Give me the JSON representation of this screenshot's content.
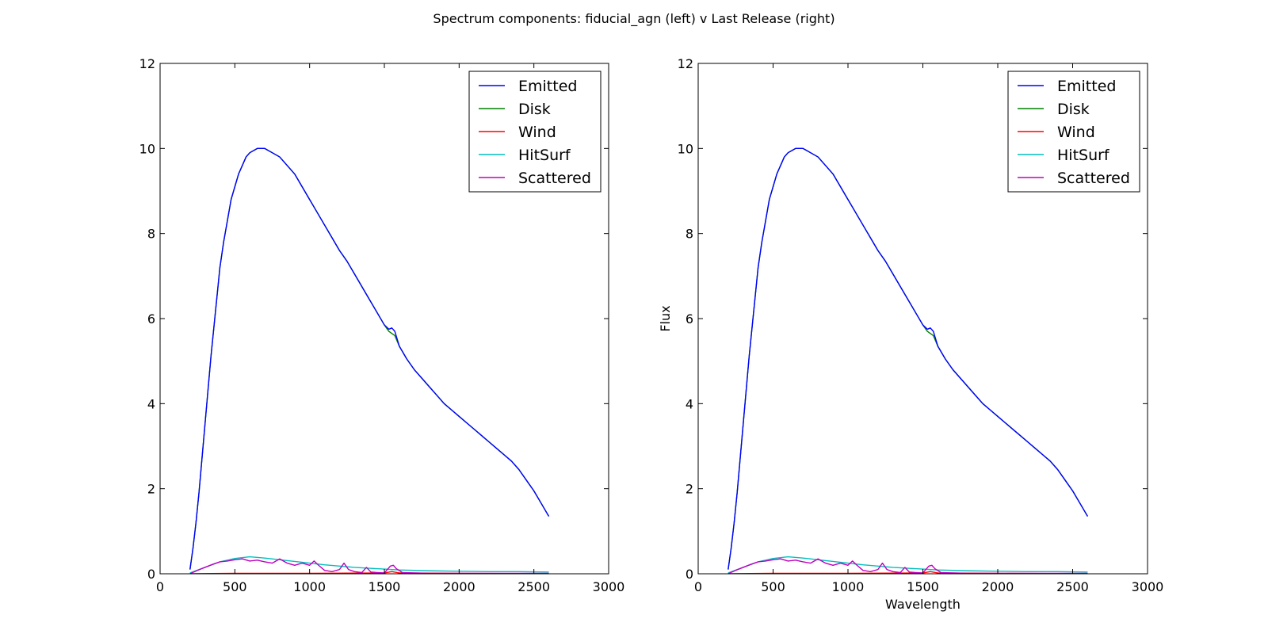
{
  "figure": {
    "title": "Spectrum components: fiducial_agn (left) v Last Release (right)"
  },
  "chart_data": [
    {
      "type": "line",
      "title": "",
      "xlabel": "",
      "ylabel": "",
      "xlim": [
        0,
        3000
      ],
      "ylim": [
        0,
        12
      ],
      "xticks": [
        0,
        500,
        1000,
        1500,
        2000,
        2500,
        3000
      ],
      "yticks": [
        0,
        2,
        4,
        6,
        8,
        10,
        12
      ],
      "grid": false,
      "legend_position": "top-right",
      "series": [
        {
          "name": "Emitted",
          "color": "#0000ff",
          "x": [
            200,
            220,
            240,
            260,
            280,
            300,
            320,
            340,
            360,
            380,
            400,
            425,
            450,
            475,
            500,
            525,
            550,
            575,
            600,
            650,
            700,
            750,
            800,
            850,
            900,
            950,
            1000,
            1050,
            1100,
            1150,
            1200,
            1250,
            1300,
            1350,
            1400,
            1450,
            1500,
            1530,
            1550,
            1570,
            1600,
            1650,
            1700,
            1750,
            1800,
            1850,
            1900,
            1950,
            2000,
            2050,
            2100,
            2150,
            2200,
            2250,
            2300,
            2350,
            2400,
            2450,
            2500,
            2550,
            2600
          ],
          "y": [
            0.1,
            0.6,
            1.2,
            1.9,
            2.7,
            3.5,
            4.3,
            5.1,
            5.8,
            6.5,
            7.2,
            7.8,
            8.3,
            8.8,
            9.1,
            9.4,
            9.6,
            9.8,
            9.9,
            10.0,
            10.0,
            9.9,
            9.8,
            9.6,
            9.4,
            9.1,
            8.8,
            8.5,
            8.2,
            7.9,
            7.6,
            7.35,
            7.05,
            6.75,
            6.45,
            6.15,
            5.85,
            5.75,
            5.78,
            5.7,
            5.35,
            5.05,
            4.8,
            4.6,
            4.4,
            4.2,
            4.0,
            3.85,
            3.7,
            3.55,
            3.4,
            3.25,
            3.1,
            2.95,
            2.8,
            2.65,
            2.45,
            2.2,
            1.95,
            1.65,
            1.35
          ]
        },
        {
          "name": "Disk",
          "color": "#008000",
          "x": [
            200,
            220,
            240,
            260,
            280,
            300,
            320,
            340,
            360,
            380,
            400,
            425,
            450,
            475,
            500,
            525,
            550,
            575,
            600,
            650,
            700,
            750,
            800,
            850,
            900,
            950,
            1000,
            1050,
            1100,
            1150,
            1200,
            1250,
            1300,
            1350,
            1400,
            1450,
            1500,
            1530,
            1550,
            1570,
            1600,
            1650,
            1700,
            1750,
            1800,
            1850,
            1900,
            1950,
            2000,
            2050,
            2100,
            2150,
            2200,
            2250,
            2300,
            2350,
            2400,
            2450,
            2500,
            2550,
            2600
          ],
          "y": [
            0.1,
            0.6,
            1.2,
            1.9,
            2.7,
            3.5,
            4.3,
            5.1,
            5.8,
            6.5,
            7.2,
            7.8,
            8.3,
            8.8,
            9.1,
            9.4,
            9.6,
            9.8,
            9.9,
            10.0,
            10.0,
            9.9,
            9.8,
            9.6,
            9.4,
            9.1,
            8.8,
            8.5,
            8.2,
            7.9,
            7.6,
            7.35,
            7.05,
            6.75,
            6.45,
            6.15,
            5.85,
            5.7,
            5.65,
            5.6,
            5.35,
            5.05,
            4.8,
            4.6,
            4.4,
            4.2,
            4.0,
            3.85,
            3.7,
            3.55,
            3.4,
            3.25,
            3.1,
            2.95,
            2.8,
            2.65,
            2.45,
            2.2,
            1.95,
            1.65,
            1.35
          ]
        },
        {
          "name": "Wind",
          "color": "#ff0000",
          "x": [
            200,
            500,
            1000,
            1500,
            1550,
            1600,
            2000,
            2600
          ],
          "y": [
            0.0,
            0.01,
            0.01,
            0.02,
            0.05,
            0.02,
            0.01,
            0.0
          ]
        },
        {
          "name": "HitSurf",
          "color": "#00bfbf",
          "x": [
            200,
            300,
            400,
            500,
            600,
            700,
            800,
            900,
            1000,
            1100,
            1200,
            1300,
            1400,
            1500,
            1600,
            1800,
            2000,
            2200,
            2400,
            2600
          ],
          "y": [
            0.02,
            0.15,
            0.28,
            0.36,
            0.4,
            0.37,
            0.33,
            0.29,
            0.25,
            0.21,
            0.18,
            0.15,
            0.13,
            0.11,
            0.09,
            0.07,
            0.06,
            0.05,
            0.05,
            0.04
          ]
        },
        {
          "name": "Scattered",
          "color": "#bf00bf",
          "x": [
            200,
            250,
            300,
            350,
            400,
            450,
            500,
            550,
            600,
            650,
            700,
            750,
            800,
            850,
            900,
            950,
            1000,
            1030,
            1060,
            1100,
            1150,
            1200,
            1230,
            1260,
            1300,
            1350,
            1380,
            1410,
            1450,
            1500,
            1540,
            1560,
            1580,
            1620,
            1700,
            1800,
            2000,
            2200,
            2400,
            2600
          ],
          "y": [
            0.0,
            0.08,
            0.15,
            0.22,
            0.28,
            0.3,
            0.33,
            0.35,
            0.3,
            0.32,
            0.28,
            0.25,
            0.35,
            0.25,
            0.2,
            0.25,
            0.2,
            0.3,
            0.2,
            0.08,
            0.05,
            0.1,
            0.25,
            0.1,
            0.05,
            0.03,
            0.15,
            0.04,
            0.03,
            0.02,
            0.18,
            0.2,
            0.12,
            0.03,
            0.02,
            0.01,
            0.01,
            0.01,
            0.01,
            0.01
          ]
        }
      ]
    },
    {
      "type": "line",
      "title": "",
      "xlabel": "Wavelength",
      "ylabel": "Flux",
      "xlim": [
        0,
        3000
      ],
      "ylim": [
        0,
        12
      ],
      "xticks": [
        0,
        500,
        1000,
        1500,
        2000,
        2500,
        3000
      ],
      "yticks": [
        0,
        2,
        4,
        6,
        8,
        10,
        12
      ],
      "grid": false,
      "legend_position": "top-right",
      "series": [
        {
          "name": "Emitted",
          "color": "#0000ff",
          "x": [
            200,
            220,
            240,
            260,
            280,
            300,
            320,
            340,
            360,
            380,
            400,
            425,
            450,
            475,
            500,
            525,
            550,
            575,
            600,
            650,
            700,
            750,
            800,
            850,
            900,
            950,
            1000,
            1050,
            1100,
            1150,
            1200,
            1250,
            1300,
            1350,
            1400,
            1450,
            1500,
            1530,
            1550,
            1570,
            1600,
            1650,
            1700,
            1750,
            1800,
            1850,
            1900,
            1950,
            2000,
            2050,
            2100,
            2150,
            2200,
            2250,
            2300,
            2350,
            2400,
            2450,
            2500,
            2550,
            2600
          ],
          "y": [
            0.1,
            0.6,
            1.2,
            1.9,
            2.7,
            3.5,
            4.3,
            5.1,
            5.8,
            6.5,
            7.2,
            7.8,
            8.3,
            8.8,
            9.1,
            9.4,
            9.6,
            9.8,
            9.9,
            10.0,
            10.0,
            9.9,
            9.8,
            9.6,
            9.4,
            9.1,
            8.8,
            8.5,
            8.2,
            7.9,
            7.6,
            7.35,
            7.05,
            6.75,
            6.45,
            6.15,
            5.85,
            5.75,
            5.78,
            5.7,
            5.35,
            5.05,
            4.8,
            4.6,
            4.4,
            4.2,
            4.0,
            3.85,
            3.7,
            3.55,
            3.4,
            3.25,
            3.1,
            2.95,
            2.8,
            2.65,
            2.45,
            2.2,
            1.95,
            1.65,
            1.35
          ]
        },
        {
          "name": "Disk",
          "color": "#008000",
          "x": [
            200,
            220,
            240,
            260,
            280,
            300,
            320,
            340,
            360,
            380,
            400,
            425,
            450,
            475,
            500,
            525,
            550,
            575,
            600,
            650,
            700,
            750,
            800,
            850,
            900,
            950,
            1000,
            1050,
            1100,
            1150,
            1200,
            1250,
            1300,
            1350,
            1400,
            1450,
            1500,
            1530,
            1550,
            1570,
            1600,
            1650,
            1700,
            1750,
            1800,
            1850,
            1900,
            1950,
            2000,
            2050,
            2100,
            2150,
            2200,
            2250,
            2300,
            2350,
            2400,
            2450,
            2500,
            2550,
            2600
          ],
          "y": [
            0.1,
            0.6,
            1.2,
            1.9,
            2.7,
            3.5,
            4.3,
            5.1,
            5.8,
            6.5,
            7.2,
            7.8,
            8.3,
            8.8,
            9.1,
            9.4,
            9.6,
            9.8,
            9.9,
            10.0,
            10.0,
            9.9,
            9.8,
            9.6,
            9.4,
            9.1,
            8.8,
            8.5,
            8.2,
            7.9,
            7.6,
            7.35,
            7.05,
            6.75,
            6.45,
            6.15,
            5.85,
            5.7,
            5.65,
            5.6,
            5.35,
            5.05,
            4.8,
            4.6,
            4.4,
            4.2,
            4.0,
            3.85,
            3.7,
            3.55,
            3.4,
            3.25,
            3.1,
            2.95,
            2.8,
            2.65,
            2.45,
            2.2,
            1.95,
            1.65,
            1.35
          ]
        },
        {
          "name": "Wind",
          "color": "#ff0000",
          "x": [
            200,
            500,
            1000,
            1500,
            1550,
            1600,
            2000,
            2600
          ],
          "y": [
            0.0,
            0.01,
            0.01,
            0.02,
            0.05,
            0.02,
            0.01,
            0.0
          ]
        },
        {
          "name": "HitSurf",
          "color": "#00bfbf",
          "x": [
            200,
            300,
            400,
            500,
            600,
            700,
            800,
            900,
            1000,
            1100,
            1200,
            1300,
            1400,
            1500,
            1600,
            1800,
            2000,
            2200,
            2400,
            2600
          ],
          "y": [
            0.02,
            0.15,
            0.28,
            0.36,
            0.4,
            0.37,
            0.33,
            0.29,
            0.25,
            0.21,
            0.18,
            0.15,
            0.13,
            0.11,
            0.09,
            0.07,
            0.06,
            0.05,
            0.05,
            0.04
          ]
        },
        {
          "name": "Scattered",
          "color": "#bf00bf",
          "x": [
            200,
            250,
            300,
            350,
            400,
            450,
            500,
            550,
            600,
            650,
            700,
            750,
            800,
            850,
            900,
            950,
            1000,
            1030,
            1060,
            1100,
            1150,
            1200,
            1230,
            1260,
            1300,
            1350,
            1380,
            1410,
            1450,
            1500,
            1540,
            1560,
            1580,
            1620,
            1700,
            1800,
            2000,
            2200,
            2400,
            2600
          ],
          "y": [
            0.0,
            0.08,
            0.15,
            0.22,
            0.28,
            0.3,
            0.33,
            0.35,
            0.3,
            0.32,
            0.28,
            0.25,
            0.35,
            0.25,
            0.2,
            0.25,
            0.2,
            0.3,
            0.2,
            0.08,
            0.05,
            0.1,
            0.25,
            0.1,
            0.05,
            0.03,
            0.15,
            0.04,
            0.03,
            0.02,
            0.18,
            0.2,
            0.12,
            0.03,
            0.02,
            0.01,
            0.01,
            0.01,
            0.01,
            0.01
          ]
        }
      ]
    }
  ]
}
